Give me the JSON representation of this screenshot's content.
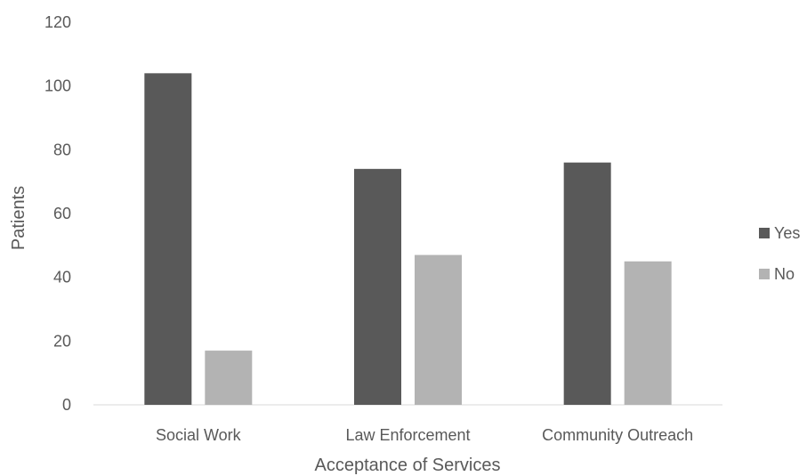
{
  "chart_data": {
    "type": "bar",
    "categories": [
      "Social Work",
      "Law Enforcement",
      "Community Outreach"
    ],
    "series": [
      {
        "name": "Yes",
        "values": [
          104,
          74,
          76
        ],
        "color": "#595959"
      },
      {
        "name": "No",
        "values": [
          17,
          47,
          45
        ],
        "color": "#b3b3b3"
      }
    ],
    "xlabel": "Acceptance of Services",
    "ylabel": "Patients",
    "ylim": [
      0,
      120
    ],
    "yticks": [
      0,
      20,
      40,
      60,
      80,
      100,
      120
    ],
    "grid": false,
    "legend_position": "right"
  }
}
